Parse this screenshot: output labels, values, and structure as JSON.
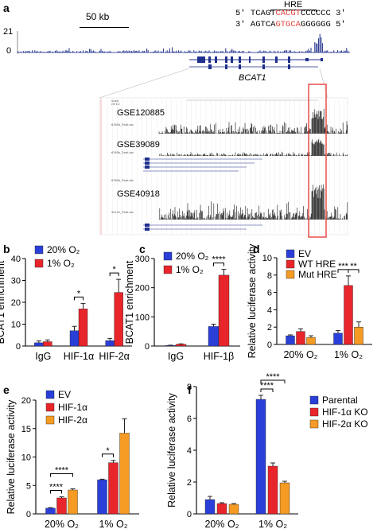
{
  "panel_a": {
    "label": "a",
    "scale_bar": "50 kb",
    "y_max": "21",
    "y_min": "0",
    "hre_label": "HRE",
    "seq_top": {
      "p5": "5′",
      "pre": "TCAGT",
      "hre": "CACGT",
      "post": "CCCCCC",
      "p3": "3′"
    },
    "seq_bot": {
      "p5": "3′",
      "pre": "AGTCA",
      "hre": "GTGCA",
      "post": "GGGGGG",
      "p3": "5′"
    },
    "gene": "BCAT1",
    "datasets": [
      "GSE120885",
      "GSE39089",
      "GSE40918"
    ],
    "colors": {
      "highlight": "#e8413b",
      "track": "#1f2f8c",
      "hre": "#e8413b"
    }
  },
  "charts": {
    "b": {
      "label": "b"
    },
    "c": {
      "label": "c"
    },
    "d": {
      "label": "d"
    },
    "e": {
      "label": "e"
    },
    "f": {
      "label": "f"
    }
  },
  "chart_data": [
    {
      "id": "b",
      "type": "bar",
      "ylabel": "BCAT1 enrichment",
      "ylim": [
        0,
        40
      ],
      "yticks": [
        "0",
        "10",
        "20",
        "30",
        "40"
      ],
      "categories": [
        "IgG",
        "HIF-1α",
        "HIF-2α"
      ],
      "series": [
        {
          "name": "20% O₂",
          "color": "#2a3fd8",
          "values": [
            1.5,
            7,
            2.5
          ],
          "errors": [
            0.8,
            2,
            1
          ]
        },
        {
          "name": "1% O₂",
          "color": "#e8252b",
          "values": [
            2,
            17,
            24.5
          ],
          "errors": [
            0.8,
            2.5,
            6
          ]
        }
      ],
      "sig": [
        {
          "cat": 1,
          "text": "*"
        },
        {
          "cat": 2,
          "text": "*"
        }
      ]
    },
    {
      "id": "c",
      "type": "bar",
      "ylabel": "BCAT1 enrichment",
      "ylim": [
        0,
        300
      ],
      "yticks": [
        "0",
        "100",
        "200",
        "300"
      ],
      "categories": [
        "IgG",
        "HIF-1β"
      ],
      "series": [
        {
          "name": "20% O₂",
          "color": "#2a3fd8",
          "values": [
            2,
            67
          ],
          "errors": [
            1,
            8
          ]
        },
        {
          "name": "1% O₂",
          "color": "#e8252b",
          "values": [
            6,
            243
          ],
          "errors": [
            1.5,
            20
          ]
        }
      ],
      "sig": [
        {
          "cat": 1,
          "text": "****"
        }
      ]
    },
    {
      "id": "d",
      "type": "bar",
      "ylabel": "Relative luciferase activity",
      "ylim": [
        0,
        10
      ],
      "yticks": [
        "0",
        "2",
        "4",
        "6",
        "8",
        "10"
      ],
      "categories": [
        "20% O₂",
        "1% O₂"
      ],
      "series": [
        {
          "name": "EV",
          "color": "#2a3fd8",
          "values": [
            1,
            1.3
          ],
          "errors": [
            0.1,
            0.3
          ]
        },
        {
          "name": "WT HRE",
          "color": "#e8252b",
          "values": [
            1.5,
            6.8
          ],
          "errors": [
            0.3,
            1.1
          ]
        },
        {
          "name": "Mut HRE",
          "color": "#f59a23",
          "values": [
            0.8,
            2
          ],
          "errors": [
            0.2,
            0.6
          ]
        }
      ],
      "sig": [
        {
          "cat": 1,
          "text": "***"
        },
        {
          "cat": 1,
          "text": "**"
        }
      ]
    },
    {
      "id": "e",
      "type": "bar",
      "ylabel": "Relative luciferase activity",
      "ylim": [
        0,
        20
      ],
      "yticks": [
        "0",
        "5",
        "10",
        "15",
        "20"
      ],
      "categories": [
        "20% O₂",
        "1% O₂"
      ],
      "series": [
        {
          "name": "EV",
          "color": "#2a3fd8",
          "values": [
            1,
            6
          ],
          "errors": [
            0.1,
            0.1
          ]
        },
        {
          "name": "HIF-1α",
          "color": "#e8252b",
          "values": [
            2.8,
            9
          ],
          "errors": [
            0.2,
            0.4
          ]
        },
        {
          "name": "HIF-2α",
          "color": "#f59a23",
          "values": [
            4.2,
            14.2
          ],
          "errors": [
            0.2,
            2.5
          ]
        }
      ],
      "sig": [
        {
          "cat": 0,
          "text": "****"
        },
        {
          "cat": 0,
          "text": "****"
        },
        {
          "cat": 1,
          "text": "*"
        }
      ]
    },
    {
      "id": "f",
      "type": "bar",
      "ylabel": "Relative luciferase activity",
      "ylim": [
        0,
        8
      ],
      "yticks": [
        "0",
        "2",
        "4",
        "6",
        "8"
      ],
      "categories": [
        "20% O₂",
        "1% O₂"
      ],
      "series": [
        {
          "name": "Parental",
          "color": "#2a3fd8",
          "values": [
            0.9,
            7.2
          ],
          "errors": [
            0.2,
            0.25
          ]
        },
        {
          "name": "HIF-1α KO",
          "color": "#e8252b",
          "values": [
            0.65,
            3
          ],
          "errors": [
            0.05,
            0.2
          ]
        },
        {
          "name": "HIF-2α KO",
          "color": "#f59a23",
          "values": [
            0.6,
            1.95
          ],
          "errors": [
            0.05,
            0.1
          ]
        }
      ],
      "sig": [
        {
          "cat": 1,
          "text": "****"
        },
        {
          "cat": 1,
          "text": "****"
        }
      ]
    }
  ]
}
